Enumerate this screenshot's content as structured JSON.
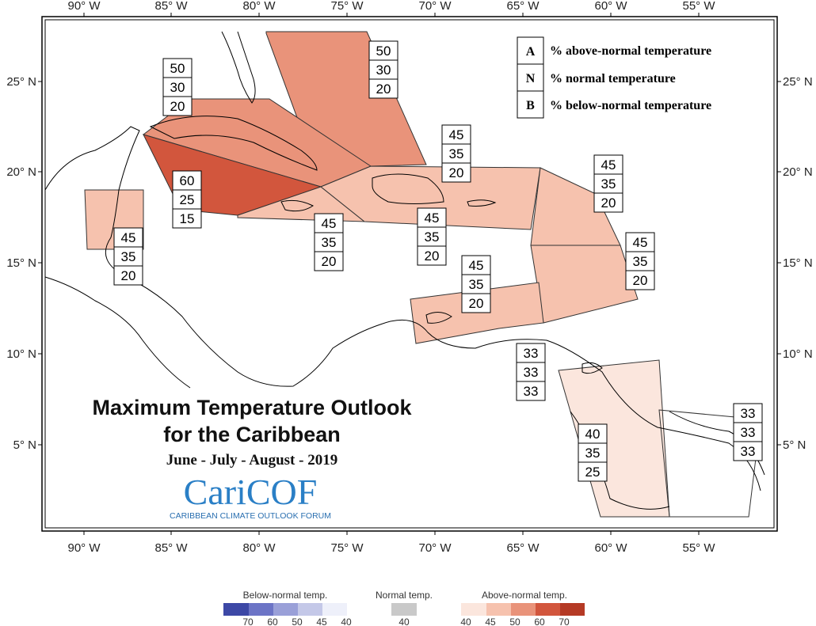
{
  "title": {
    "line1": "Maximum Temperature Outlook",
    "line2": "for the Caribbean",
    "period": "June - July - August - 2019"
  },
  "logo": {
    "name": "CariCOF",
    "subtitle": "CARIBBEAN CLIMATE OUTLOOK FORUM"
  },
  "key": [
    {
      "letter": "A",
      "text": "% above-normal temperature"
    },
    {
      "letter": "N",
      "text": "% normal temperature"
    },
    {
      "letter": "B",
      "text": "% below-normal temperature"
    }
  ],
  "axes": {
    "x_ticks": [
      "90° W",
      "85° W",
      "80° W",
      "75° W",
      "70° W",
      "65° W",
      "60° W",
      "55° W"
    ],
    "y_ticks": [
      "25° N",
      "20° N",
      "15° N",
      "10° N",
      "5° N"
    ]
  },
  "colors": {
    "above_40": "#fbe6dd",
    "above_45": "#f6c2ae",
    "above_50": "#e9937a",
    "above_60": "#d2563d",
    "above_70": "#b53a25",
    "normal_40": "#c9c9c9",
    "below_40": "#eef0fa",
    "below_45": "#c4c8e8",
    "below_50": "#9aa0d8",
    "below_60": "#6c74c6",
    "below_70": "#3d48a6"
  },
  "regions": [
    {
      "id": "bahamas",
      "a": "50",
      "n": "30",
      "b": "20"
    },
    {
      "id": "cuba",
      "a": "50",
      "n": "30",
      "b": "20"
    },
    {
      "id": "cayman",
      "a": "60",
      "n": "25",
      "b": "15"
    },
    {
      "id": "belize",
      "a": "45",
      "n": "35",
      "b": "20"
    },
    {
      "id": "jamaica",
      "a": "45",
      "n": "35",
      "b": "20"
    },
    {
      "id": "hispaniola",
      "a": "45",
      "n": "35",
      "b": "20"
    },
    {
      "id": "turks-caicos",
      "a": "45",
      "n": "35",
      "b": "20"
    },
    {
      "id": "leeward",
      "a": "45",
      "n": "35",
      "b": "20"
    },
    {
      "id": "windward",
      "a": "45",
      "n": "35",
      "b": "20"
    },
    {
      "id": "abc-islands",
      "a": "45",
      "n": "35",
      "b": "20"
    },
    {
      "id": "trinidad",
      "a": "33",
      "n": "33",
      "b": "33"
    },
    {
      "id": "guyana",
      "a": "40",
      "n": "35",
      "b": "25"
    },
    {
      "id": "french-guiana",
      "a": "33",
      "n": "33",
      "b": "33"
    }
  ],
  "legend": {
    "below": {
      "title": "Below-normal temp.",
      "labels": [
        "70",
        "60",
        "50",
        "45",
        "40"
      ]
    },
    "normal": {
      "title": "Normal temp.",
      "labels": [
        "40"
      ]
    },
    "above": {
      "title": "Above-normal temp.",
      "labels": [
        "40",
        "45",
        "50",
        "60",
        "70"
      ]
    }
  }
}
